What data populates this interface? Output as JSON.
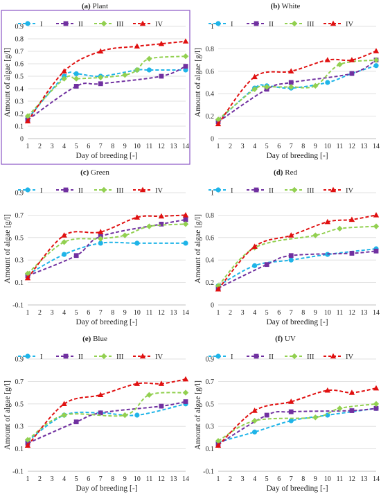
{
  "chart_data": [
    {
      "type": "line",
      "panel_letter": "(a)",
      "panel_name": "Plant",
      "framed": true,
      "x": [
        1,
        4,
        5,
        7,
        10,
        11,
        14
      ],
      "xticks": [
        "1",
        "2",
        "3",
        "4",
        "5",
        "6",
        "7",
        "8",
        "9",
        "10",
        "11",
        "12",
        "13",
        "14"
      ],
      "yticks": [
        "0",
        "0.1",
        "0.2",
        "0.3",
        "0.4",
        "0.5",
        "0.6",
        "0.7",
        "0.8",
        "0.9"
      ],
      "ylim": [
        0,
        0.9
      ],
      "xlabel": "Day of breeding [-]",
      "ylabel": "Amount of algae [g/l]",
      "legend_position": "top",
      "series": [
        {
          "name": "I",
          "x": [
            1,
            4,
            5,
            7,
            10,
            11,
            14
          ],
          "values": [
            0.16,
            0.5,
            0.52,
            0.5,
            0.55,
            0.55,
            0.55
          ]
        },
        {
          "name": "II",
          "x": [
            1,
            5,
            7,
            12,
            14
          ],
          "values": [
            0.15,
            0.42,
            0.44,
            0.5,
            0.58
          ]
        },
        {
          "name": "III",
          "x": [
            1,
            4,
            5,
            7,
            9,
            10,
            11,
            14
          ],
          "values": [
            0.18,
            0.48,
            0.48,
            0.49,
            0.51,
            0.55,
            0.64,
            0.66
          ]
        },
        {
          "name": "IV",
          "x": [
            1,
            4,
            7,
            10,
            12,
            14
          ],
          "values": [
            0.14,
            0.54,
            0.7,
            0.74,
            0.76,
            0.78
          ]
        }
      ]
    },
    {
      "type": "line",
      "panel_letter": "(b)",
      "panel_name": "White",
      "framed": false,
      "xticks": [
        "1",
        "2",
        "3",
        "4",
        "5",
        "6",
        "7",
        "8",
        "9",
        "10",
        "11",
        "12",
        "13",
        "14"
      ],
      "yticks": [
        "0",
        "0.2",
        "0.4",
        "0.6",
        "0.8",
        "1"
      ],
      "ylim": [
        0,
        1
      ],
      "xlabel": "Day of breeding [-]",
      "ylabel": "Amount of algae [g/l]",
      "legend_position": "top",
      "series": [
        {
          "name": "I",
          "x": [
            1,
            4,
            5,
            7,
            10,
            12,
            14
          ],
          "values": [
            0.16,
            0.45,
            0.47,
            0.45,
            0.5,
            0.58,
            0.65
          ]
        },
        {
          "name": "II",
          "x": [
            1,
            5,
            7,
            12,
            14
          ],
          "values": [
            0.15,
            0.44,
            0.5,
            0.58,
            0.7
          ]
        },
        {
          "name": "III",
          "x": [
            1,
            4,
            5,
            7,
            9,
            11,
            14
          ],
          "values": [
            0.17,
            0.44,
            0.46,
            0.46,
            0.47,
            0.66,
            0.7
          ]
        },
        {
          "name": "IV",
          "x": [
            1,
            4,
            7,
            10,
            12,
            14
          ],
          "values": [
            0.13,
            0.55,
            0.6,
            0.7,
            0.7,
            0.78
          ]
        }
      ]
    },
    {
      "type": "line",
      "panel_letter": "(c)",
      "panel_name": "Green",
      "framed": false,
      "xticks": [
        "1",
        "2",
        "3",
        "4",
        "5",
        "6",
        "7",
        "8",
        "9",
        "10",
        "11",
        "12",
        "13",
        "14"
      ],
      "yticks": [
        "-0.1",
        "0.1",
        "0.3",
        "0.5",
        "0.7",
        "0.9"
      ],
      "ylim": [
        -0.1,
        0.9
      ],
      "xlabel": "Day of breeding [-]",
      "ylabel": "Amount of algae [g/l]",
      "legend_position": "top",
      "series": [
        {
          "name": "I",
          "x": [
            1,
            4,
            7,
            10,
            14
          ],
          "values": [
            0.17,
            0.35,
            0.45,
            0.45,
            0.45
          ]
        },
        {
          "name": "II",
          "x": [
            1,
            5,
            7,
            12,
            14
          ],
          "values": [
            0.16,
            0.34,
            0.51,
            0.62,
            0.66
          ]
        },
        {
          "name": "III",
          "x": [
            1,
            4,
            7,
            9,
            11,
            14
          ],
          "values": [
            0.18,
            0.46,
            0.49,
            0.52,
            0.6,
            0.62
          ]
        },
        {
          "name": "IV",
          "x": [
            1,
            4,
            7,
            10,
            12,
            14
          ],
          "values": [
            0.14,
            0.52,
            0.55,
            0.68,
            0.69,
            0.7
          ]
        }
      ]
    },
    {
      "type": "line",
      "panel_letter": "(d)",
      "panel_name": "Red",
      "framed": false,
      "xticks": [
        "1",
        "2",
        "3",
        "4",
        "5",
        "6",
        "7",
        "8",
        "9",
        "10",
        "11",
        "12",
        "13",
        "14"
      ],
      "yticks": [
        "0",
        "0.2",
        "0.4",
        "0.6",
        "0.8",
        "1"
      ],
      "ylim": [
        0,
        1
      ],
      "xlabel": "Day of breeding [-]",
      "ylabel": "Amount of algae [g/l]",
      "legend_position": "top",
      "series": [
        {
          "name": "I",
          "x": [
            1,
            4,
            7,
            10,
            14
          ],
          "values": [
            0.17,
            0.35,
            0.4,
            0.45,
            0.5
          ]
        },
        {
          "name": "II",
          "x": [
            1,
            5,
            7,
            12,
            14
          ],
          "values": [
            0.15,
            0.36,
            0.44,
            0.46,
            0.48
          ]
        },
        {
          "name": "III",
          "x": [
            1,
            4,
            9,
            11,
            14
          ],
          "values": [
            0.17,
            0.51,
            0.62,
            0.68,
            0.7
          ]
        },
        {
          "name": "IV",
          "x": [
            1,
            4,
            7,
            10,
            12,
            14
          ],
          "values": [
            0.14,
            0.52,
            0.62,
            0.74,
            0.76,
            0.8
          ]
        }
      ]
    },
    {
      "type": "line",
      "panel_letter": "(e)",
      "panel_name": "Blue",
      "framed": false,
      "xticks": [
        "1",
        "2",
        "3",
        "4",
        "5",
        "6",
        "7",
        "8",
        "9",
        "10",
        "11",
        "12",
        "13",
        "14"
      ],
      "yticks": [
        "-0.1",
        "0.1",
        "0.3",
        "0.5",
        "0.7",
        "0.9"
      ],
      "ylim": [
        -0.1,
        0.9
      ],
      "xlabel": "Day of breeding [-]",
      "ylabel": "Amount of algae [g/l]",
      "legend_position": "top",
      "series": [
        {
          "name": "I",
          "x": [
            1,
            4,
            7,
            10,
            14
          ],
          "values": [
            0.17,
            0.4,
            0.42,
            0.4,
            0.5
          ]
        },
        {
          "name": "II",
          "x": [
            1,
            5,
            7,
            12,
            14
          ],
          "values": [
            0.15,
            0.34,
            0.42,
            0.48,
            0.52
          ]
        },
        {
          "name": "III",
          "x": [
            1,
            4,
            9,
            11,
            14
          ],
          "values": [
            0.18,
            0.4,
            0.4,
            0.58,
            0.6
          ]
        },
        {
          "name": "IV",
          "x": [
            1,
            4,
            7,
            10,
            12,
            14
          ],
          "values": [
            0.13,
            0.5,
            0.58,
            0.68,
            0.68,
            0.72
          ]
        }
      ]
    },
    {
      "type": "line",
      "panel_letter": "(f)",
      "panel_name": "UV",
      "framed": false,
      "xticks": [
        "1",
        "2",
        "3",
        "4",
        "5",
        "6",
        "7",
        "8",
        "9",
        "10",
        "11",
        "12",
        "13",
        "14"
      ],
      "yticks": [
        "-0.1",
        "0.1",
        "0.3",
        "0.5",
        "0.7",
        "0.9"
      ],
      "ylim": [
        -0.1,
        0.9
      ],
      "xlabel": "Day of breeding [-]",
      "ylabel": "Amount of algae [g/l]",
      "legend_position": "top",
      "series": [
        {
          "name": "I",
          "x": [
            1,
            4,
            7,
            10,
            14
          ],
          "values": [
            0.16,
            0.25,
            0.35,
            0.4,
            0.46
          ]
        },
        {
          "name": "II",
          "x": [
            1,
            5,
            7,
            12,
            14
          ],
          "values": [
            0.14,
            0.4,
            0.43,
            0.44,
            0.46
          ]
        },
        {
          "name": "III",
          "x": [
            1,
            4,
            9,
            11,
            14
          ],
          "values": [
            0.17,
            0.35,
            0.38,
            0.46,
            0.5
          ]
        },
        {
          "name": "IV",
          "x": [
            1,
            4,
            7,
            10,
            12,
            14
          ],
          "values": [
            0.13,
            0.44,
            0.52,
            0.62,
            0.6,
            0.64
          ]
        }
      ]
    }
  ],
  "series_style": {
    "I": {
      "color": "#1fb4e8",
      "marker": "circle"
    },
    "II": {
      "color": "#7030a0",
      "marker": "square"
    },
    "III": {
      "color": "#92d050",
      "marker": "diamond"
    },
    "IV": {
      "color": "#e01010",
      "marker": "triangle"
    }
  }
}
